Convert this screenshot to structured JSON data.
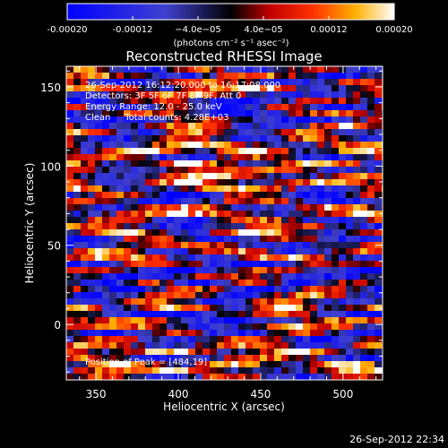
{
  "chart_data": {
    "type": "heatmap",
    "title": "Reconstructed RHESSI Image",
    "xlabel": "Heliocentric X (arcsec)",
    "ylabel": "Heliocentric Y (arcsec)",
    "xlim": [
      332,
      524
    ],
    "ylim": [
      -35,
      163
    ],
    "x_ticks": [
      350,
      400,
      450,
      500
    ],
    "y_ticks": [
      0,
      50,
      100,
      150
    ],
    "colorbar": {
      "range": [
        -0.0002,
        0.0002
      ],
      "tick_values": [
        -0.0002,
        -0.00012,
        -4e-05,
        4e-05,
        0.00012,
        0.0002
      ],
      "tick_labels": [
        "-0.00020",
        "-0.00012",
        "−4.0e−05",
        "4.0e−05",
        "0.00012",
        "0.00020"
      ],
      "units": "(photons cm⁻² s⁻¹ asec⁻²)",
      "colors": [
        "#0000ff",
        "#000000",
        "#ff0000",
        "#ffff00",
        "#ffffff"
      ]
    },
    "annotations": [
      "26-Sep-2012 16:12:20.000 to 16:17:08.000",
      "Detectors: 3F 5F 6F 7F 8F 9F, Att 0",
      "Energy Range: 12.0 - 25.0 keV",
      "Clean     Total counts: 4.28E+03"
    ],
    "peak_label": "Position of Peak = [484,19]",
    "grid": false
  },
  "footer": {
    "timestamp": "26-Sep-2012 22:34"
  }
}
